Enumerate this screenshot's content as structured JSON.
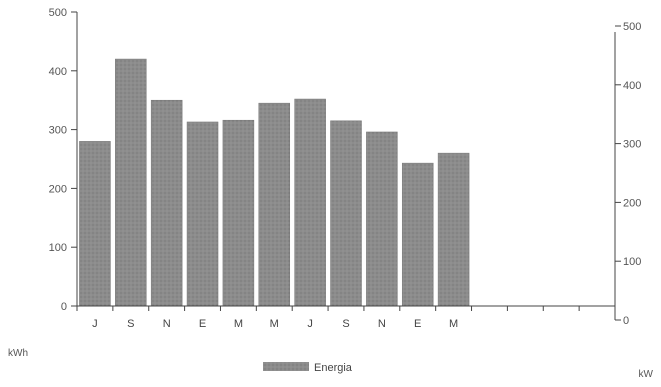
{
  "chart_data": {
    "type": "bar",
    "categories": [
      "J",
      "S",
      "N",
      "E",
      "M",
      "M",
      "J",
      "S",
      "N",
      "E",
      "M"
    ],
    "series": [
      {
        "name": "Energia",
        "values": [
          280,
          420,
          350,
          313,
          316,
          345,
          352,
          315,
          296,
          243,
          260
        ]
      }
    ],
    "ylim": [
      0,
      500
    ],
    "y_ticks": [
      0,
      100,
      200,
      300,
      400,
      500
    ],
    "y2lim": [
      0,
      500
    ],
    "y2_ticks": [
      0,
      100,
      200,
      300,
      400,
      500
    ],
    "ylabel": "kWh",
    "y2label": "kW",
    "legend_position": "bottom-center",
    "grid": false,
    "bar_color": "#8a8a8a",
    "axis_color": "#444444"
  }
}
